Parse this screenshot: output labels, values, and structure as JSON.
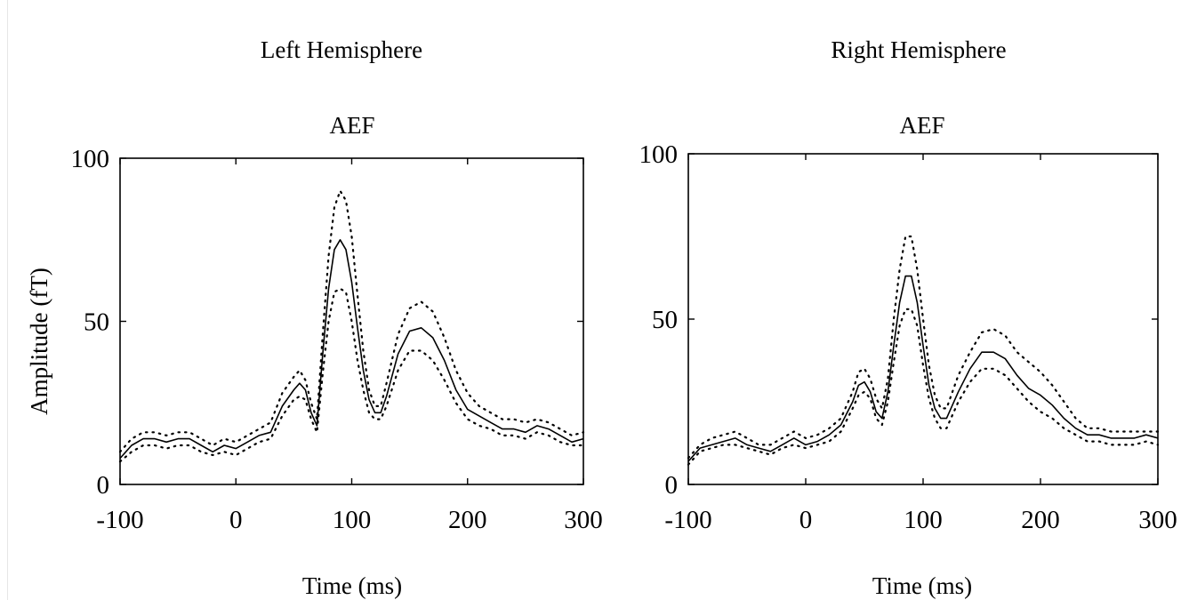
{
  "colors": {
    "line": "#000000",
    "background": "#ffffff"
  },
  "panels": [
    {
      "heading": "Left Hemisphere",
      "chart_data": {
        "type": "line",
        "title": "AEF",
        "xlabel": "Time (ms)",
        "ylabel": "Amplitude (fT)",
        "xlim": [
          -100,
          300
        ],
        "ylim": [
          0,
          100
        ],
        "xticks": [
          "-100",
          "0",
          "100",
          "200",
          "300"
        ],
        "yticks": [
          "0",
          "50",
          "100"
        ],
        "grid": false,
        "series": [
          {
            "style": "solid",
            "x": [
              -100,
              -90,
              -80,
              -70,
              -60,
              -50,
              -40,
              -30,
              -20,
              -10,
              0,
              10,
              20,
              30,
              40,
              50,
              55,
              60,
              65,
              70,
              75,
              80,
              85,
              90,
              95,
              100,
              105,
              110,
              115,
              120,
              125,
              130,
              140,
              150,
              160,
              170,
              180,
              190,
              200,
              210,
              220,
              230,
              240,
              250,
              260,
              270,
              280,
              290,
              300
            ],
            "y": [
              8,
              12,
              14,
              14,
              13,
              14,
              14,
              12,
              10,
              12,
              11,
              13,
              15,
              16,
              24,
              29,
              31,
              29,
              22,
              18,
              40,
              60,
              72,
              75,
              72,
              62,
              48,
              35,
              26,
              22,
              22,
              27,
              40,
              47,
              48,
              45,
              38,
              29,
              23,
              21,
              19,
              17,
              17,
              16,
              18,
              17,
              15,
              13,
              14
            ]
          },
          {
            "style": "dotted",
            "x": [
              -100,
              -90,
              -80,
              -70,
              -60,
              -50,
              -40,
              -30,
              -20,
              -10,
              0,
              10,
              20,
              30,
              40,
              50,
              55,
              60,
              65,
              70,
              75,
              80,
              85,
              90,
              95,
              100,
              105,
              110,
              115,
              120,
              125,
              130,
              140,
              150,
              160,
              170,
              180,
              190,
              200,
              210,
              220,
              230,
              240,
              250,
              260,
              270,
              280,
              290,
              300
            ],
            "y": [
              10,
              14,
              16,
              16,
              15,
              16,
              16,
              14,
              12,
              14,
              13,
              15,
              17,
              19,
              28,
              33,
              35,
              32,
              25,
              20,
              46,
              70,
              85,
              90,
              87,
              76,
              58,
              41,
              29,
              24,
              24,
              31,
              46,
              54,
              56,
              53,
              45,
              35,
              28,
              24,
              22,
              20,
              20,
              19,
              20,
              19,
              17,
              15,
              16
            ]
          },
          {
            "style": "dotted",
            "x": [
              -100,
              -90,
              -80,
              -70,
              -60,
              -50,
              -40,
              -30,
              -20,
              -10,
              0,
              10,
              20,
              30,
              40,
              50,
              55,
              60,
              65,
              70,
              75,
              80,
              85,
              90,
              95,
              100,
              105,
              110,
              115,
              120,
              125,
              130,
              140,
              150,
              160,
              170,
              180,
              190,
              200,
              210,
              220,
              230,
              240,
              250,
              260,
              270,
              280,
              290,
              300
            ],
            "y": [
              7,
              10,
              12,
              12,
              11,
              12,
              12,
              10,
              9,
              10,
              9,
              11,
              13,
              14,
              21,
              26,
              27,
              26,
              20,
              16,
              34,
              50,
              59,
              60,
              59,
              50,
              38,
              29,
              22,
              20,
              20,
              24,
              35,
              41,
              41,
              38,
              32,
              25,
              20,
              18,
              17,
              15,
              15,
              14,
              16,
              15,
              13,
              12,
              12
            ]
          }
        ]
      }
    },
    {
      "heading": "Right Hemisphere",
      "chart_data": {
        "type": "line",
        "title": "AEF",
        "xlabel": "Time (ms)",
        "ylabel": "",
        "xlim": [
          -100,
          300
        ],
        "ylim": [
          0,
          100
        ],
        "xticks": [
          "-100",
          "0",
          "100",
          "200",
          "300"
        ],
        "yticks": [
          "0",
          "50",
          "100"
        ],
        "grid": false,
        "series": [
          {
            "style": "solid",
            "x": [
              -100,
              -90,
              -80,
              -70,
              -60,
              -50,
              -40,
              -30,
              -20,
              -10,
              0,
              10,
              20,
              30,
              40,
              45,
              50,
              55,
              60,
              65,
              70,
              75,
              80,
              85,
              90,
              95,
              100,
              105,
              110,
              115,
              120,
              125,
              130,
              140,
              150,
              160,
              170,
              180,
              190,
              200,
              210,
              220,
              230,
              240,
              250,
              260,
              270,
              280,
              290,
              300
            ],
            "y": [
              7,
              11,
              12,
              13,
              14,
              12,
              11,
              10,
              12,
              14,
              12,
              13,
              15,
              18,
              25,
              30,
              31,
              28,
              22,
              20,
              28,
              42,
              55,
              63,
              63,
              55,
              42,
              30,
              23,
              20,
              20,
              24,
              28,
              35,
              40,
              40,
              38,
              33,
              29,
              27,
              24,
              20,
              17,
              15,
              15,
              14,
              14,
              14,
              15,
              14
            ]
          },
          {
            "style": "dotted",
            "x": [
              -100,
              -90,
              -80,
              -70,
              -60,
              -50,
              -40,
              -30,
              -20,
              -10,
              0,
              10,
              20,
              30,
              40,
              45,
              50,
              55,
              60,
              65,
              70,
              75,
              80,
              85,
              90,
              95,
              100,
              105,
              110,
              115,
              120,
              125,
              130,
              140,
              150,
              160,
              170,
              180,
              190,
              200,
              210,
              220,
              230,
              240,
              250,
              260,
              270,
              280,
              290,
              300
            ],
            "y": [
              8,
              12,
              14,
              15,
              16,
              14,
              12,
              12,
              14,
              16,
              14,
              15,
              17,
              20,
              28,
              34,
              35,
              32,
              26,
              23,
              32,
              50,
              65,
              75,
              75,
              65,
              50,
              36,
              27,
              23,
              23,
              28,
              33,
              40,
              46,
              47,
              45,
              40,
              37,
              34,
              30,
              25,
              20,
              17,
              17,
              16,
              16,
              16,
              16,
              16
            ]
          },
          {
            "style": "dotted",
            "x": [
              -100,
              -90,
              -80,
              -70,
              -60,
              -50,
              -40,
              -30,
              -20,
              -10,
              0,
              10,
              20,
              30,
              40,
              45,
              50,
              55,
              60,
              65,
              70,
              75,
              80,
              85,
              90,
              95,
              100,
              105,
              110,
              115,
              120,
              125,
              130,
              140,
              150,
              160,
              170,
              180,
              190,
              200,
              210,
              220,
              230,
              240,
              250,
              260,
              270,
              280,
              290,
              300
            ],
            "y": [
              6,
              10,
              11,
              12,
              12,
              11,
              10,
              9,
              11,
              12,
              11,
              12,
              13,
              16,
              23,
              27,
              28,
              26,
              20,
              18,
              25,
              37,
              48,
              53,
              53,
              48,
              36,
              26,
              20,
              17,
              17,
              21,
              25,
              31,
              35,
              35,
              33,
              29,
              25,
              22,
              20,
              17,
              15,
              13,
              13,
              12,
              12,
              12,
              13,
              12
            ]
          }
        ]
      }
    }
  ]
}
